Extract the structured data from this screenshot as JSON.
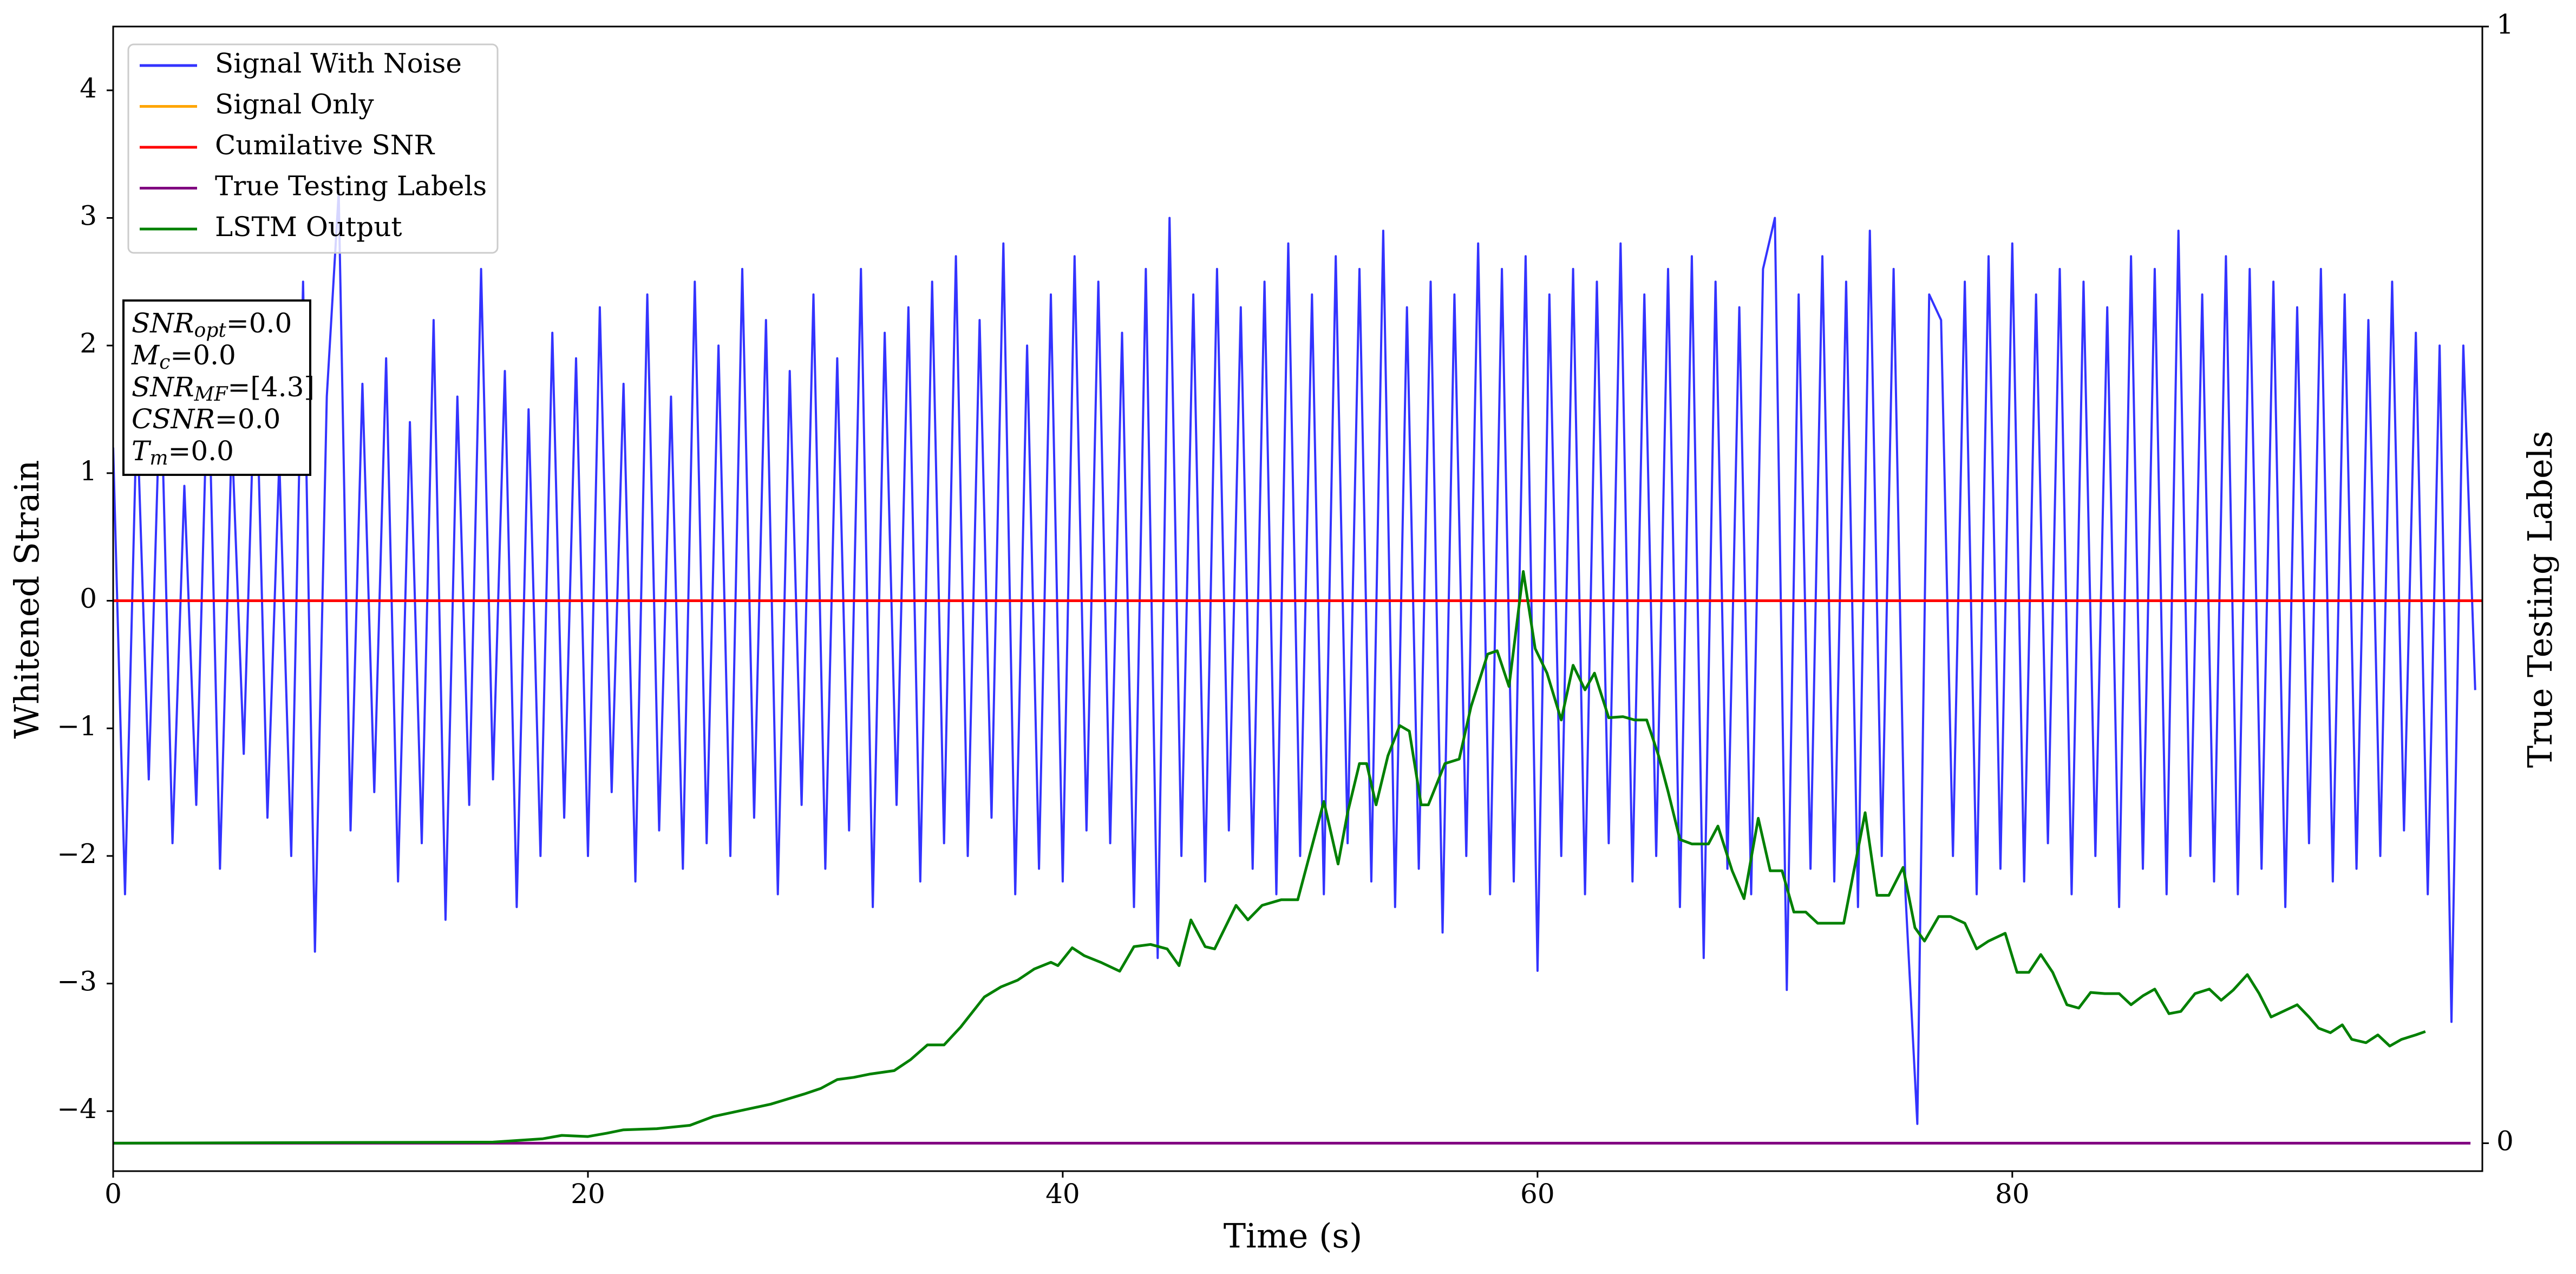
{
  "chart_data": {
    "type": "line",
    "xlabel": "Time (s)",
    "ylabel": "Whitened Strain",
    "y2label": "True Testing Labels",
    "xlim": [
      0,
      99.8
    ],
    "xticks": [
      0,
      20,
      40,
      60,
      80
    ],
    "ylim": [
      -4.47,
      4.5
    ],
    "yticks": [
      {
        "value": -4,
        "label": "−4"
      },
      {
        "value": -3,
        "label": "−3"
      },
      {
        "value": -2,
        "label": "−2"
      },
      {
        "value": -1,
        "label": "−1"
      },
      0,
      1,
      2,
      3,
      4
    ],
    "y2lim": [
      -0.025,
      1
    ],
    "y2ticks": [
      0,
      1
    ],
    "legend": "upper left",
    "annotations": [
      {
        "var": "SNR",
        "sub": "opt",
        "text": "=0.0"
      },
      {
        "var": "M",
        "sub": "c",
        "text": "=0.0"
      },
      {
        "var": "SNR",
        "sub": "MF",
        "text": "=[4.3]"
      },
      {
        "var": "CSNR",
        "text": "=0.0"
      },
      {
        "var": "T",
        "sub": "m",
        "text": "=0.0"
      }
    ],
    "series": [
      {
        "name": "Signal With Noise",
        "color": "#3333ff",
        "x": [
          0,
          0.5,
          1,
          1.5,
          2,
          2.5,
          3,
          3.5,
          4,
          4.5,
          5,
          5.5,
          6,
          6.5,
          7,
          7.5,
          8,
          8.5,
          9,
          9.5,
          10,
          10.5,
          11,
          11.5,
          12,
          12.5,
          13,
          13.5,
          14,
          14.5,
          15,
          15.5,
          16,
          16.5,
          17,
          17.5,
          18,
          18.5,
          19,
          19.5,
          20,
          20.5,
          21,
          21.5,
          22,
          22.5,
          23,
          23.5,
          24,
          24.5,
          25,
          25.5,
          26,
          26.5,
          27,
          27.5,
          28,
          28.5,
          29,
          29.5,
          30,
          30.5,
          31,
          31.5,
          32,
          32.5,
          33,
          33.5,
          34,
          34.5,
          35,
          35.5,
          36,
          36.5,
          37,
          37.5,
          38,
          38.5,
          39,
          39.5,
          40,
          40.5,
          41,
          41.5,
          42,
          42.5,
          43,
          43.5,
          44,
          44.5,
          45,
          45.5,
          46,
          46.5,
          47,
          47.5,
          48,
          48.5,
          49,
          49.5,
          50,
          50.5,
          51,
          51.5,
          52,
          52.5,
          53,
          53.5,
          54,
          54.5,
          55,
          55.5,
          56,
          56.5,
          57,
          57.5,
          58,
          58.5,
          59,
          59.5,
          60,
          60.5,
          61,
          61.5,
          62,
          62.5,
          63,
          63.5,
          64,
          64.5,
          65,
          65.5,
          66,
          66.5,
          67,
          67.5,
          68,
          68.5,
          69,
          69.5,
          70,
          70.5,
          71,
          71.5,
          72,
          72.5,
          73,
          73.5,
          74,
          74.5,
          75,
          75.5,
          76,
          76.5,
          77,
          77.5,
          78,
          78.5,
          79,
          79.5,
          80,
          80.5,
          81,
          81.5,
          82,
          82.5,
          83,
          83.5,
          84,
          84.5,
          85,
          85.5,
          86,
          86.5,
          87,
          87.5,
          88,
          88.5,
          89,
          89.5,
          90,
          90.5,
          91,
          91.5,
          92,
          92.5,
          93,
          93.5,
          94,
          94.5,
          95,
          95.5,
          96,
          96.5,
          97,
          97.5,
          98,
          98.5,
          99,
          99.5
        ],
        "values": [
          1.2,
          -2.3,
          1.5,
          -1.4,
          1.8,
          -1.9,
          0.9,
          -1.6,
          1.9,
          -2.1,
          1.3,
          -1.2,
          2.0,
          -1.7,
          1.1,
          -2.0,
          2.5,
          -2.75,
          1.6,
          3.2,
          -1.8,
          1.7,
          -1.5,
          1.9,
          -2.2,
          1.4,
          -1.9,
          2.2,
          -2.5,
          1.6,
          -1.6,
          2.6,
          -1.4,
          1.8,
          -2.4,
          1.5,
          -2.0,
          2.1,
          -1.7,
          1.9,
          -2.0,
          2.3,
          -1.5,
          1.7,
          -2.2,
          2.4,
          -1.8,
          1.6,
          -2.1,
          2.5,
          -1.9,
          2.0,
          -2.0,
          2.6,
          -1.7,
          2.2,
          -2.3,
          1.8,
          -1.6,
          2.4,
          -2.1,
          1.9,
          -1.8,
          2.6,
          -2.4,
          2.1,
          -1.6,
          2.3,
          -2.2,
          2.5,
          -1.9,
          2.7,
          -2.0,
          2.2,
          -1.7,
          2.8,
          -2.3,
          2.0,
          -2.1,
          2.4,
          -2.2,
          2.7,
          -1.8,
          2.5,
          -1.9,
          2.1,
          -2.4,
          2.6,
          -2.8,
          3.0,
          -2.0,
          2.4,
          -2.2,
          2.6,
          -1.8,
          2.3,
          -2.1,
          2.5,
          -2.3,
          2.8,
          -2.0,
          2.4,
          -2.3,
          2.7,
          -1.9,
          2.6,
          -2.2,
          2.9,
          -2.4,
          2.3,
          -2.1,
          2.5,
          -2.6,
          2.4,
          -2.0,
          2.8,
          -2.3,
          2.6,
          -2.2,
          2.7,
          -2.9,
          2.4,
          -2.0,
          2.6,
          -2.3,
          2.5,
          -1.9,
          2.8,
          -2.2,
          2.4,
          -2.0,
          2.6,
          -2.4,
          2.7,
          -2.8,
          2.5,
          -2.1,
          2.3,
          -2.3,
          2.6,
          3.0,
          -3.05,
          2.4,
          -2.1,
          2.7,
          -2.2,
          2.5,
          -2.4,
          2.9,
          -2.0,
          2.6,
          -2.3,
          -4.1,
          2.4,
          2.2,
          -2.0,
          2.5,
          -2.3,
          2.7,
          -2.1,
          2.8,
          -2.2,
          2.4,
          -1.9,
          2.6,
          -2.3,
          2.5,
          -2.0,
          2.3,
          -2.4,
          2.7,
          -2.1,
          2.6,
          -2.3,
          2.9,
          -2.0,
          2.4,
          -2.2,
          2.7,
          -2.3,
          2.6,
          -2.1,
          2.5,
          -2.4,
          2.3,
          -1.9,
          2.6,
          -2.2,
          2.4,
          -2.1,
          2.2,
          -2.0,
          2.5,
          -1.8,
          2.1,
          -2.3,
          2.0,
          -3.3,
          2.0,
          -0.7
        ]
      },
      {
        "name": "Signal Only",
        "color": "#ffa500",
        "x": [
          0,
          99.8
        ],
        "values": [
          0,
          0
        ]
      },
      {
        "name": "Cumilative SNR",
        "color": "#ff0000",
        "x": [
          0,
          99.8
        ],
        "values": [
          0,
          0
        ]
      },
      {
        "name": "True Testing Labels",
        "color": "#800080",
        "axis": "y2",
        "x": [
          0,
          99.3
        ],
        "values": [
          0,
          0
        ]
      },
      {
        "name": "LSTM Output",
        "color": "#008000",
        "axis": "y2",
        "x": [
          0,
          16.0,
          18.1,
          18.9,
          20.0,
          20.8,
          21.5,
          22.9,
          24.3,
          25.3,
          26.4,
          27.7,
          29.1,
          29.8,
          30.5,
          31.2,
          31.9,
          32.9,
          33.6,
          34.3,
          35.0,
          35.7,
          36.7,
          37.4,
          38.1,
          38.8,
          39.5,
          39.8,
          40.4,
          40.9,
          41.6,
          42.4,
          43.0,
          43.7,
          44.4,
          44.9,
          45.4,
          46.0,
          46.4,
          47.3,
          47.8,
          48.4,
          49.2,
          49.9,
          50.6,
          51.0,
          51.6,
          52.0,
          52.5,
          52.8,
          53.2,
          53.7,
          54.2,
          54.6,
          55.1,
          55.4,
          56.1,
          56.7,
          57.2,
          57.9,
          58.3,
          58.8,
          59.0,
          59.4,
          59.9,
          60.4,
          61.0,
          61.5,
          62.0,
          62.4,
          63.0,
          63.6,
          64.1,
          64.6,
          65.1,
          65.5,
          66.0,
          66.5,
          67.2,
          67.6,
          68.2,
          68.7,
          69.3,
          69.8,
          70.3,
          70.8,
          71.3,
          71.8,
          72.4,
          72.9,
          73.8,
          74.3,
          74.8,
          75.4,
          75.9,
          76.3,
          76.9,
          77.4,
          78.0,
          78.5,
          79.0,
          79.7,
          80.2,
          80.7,
          81.2,
          81.7,
          82.3,
          82.8,
          83.3,
          83.9,
          84.5,
          85.0,
          85.5,
          86.0,
          86.6,
          87.1,
          87.7,
          88.3,
          88.8,
          89.3,
          89.9,
          90.4,
          90.9,
          91.4,
          92.0,
          92.5,
          92.9,
          93.4,
          93.9,
          94.3,
          94.9,
          95.4,
          95.9,
          96.4,
          97.0,
          97.4
        ],
        "values": [
          0,
          0.001,
          0.004,
          0.007,
          0.006,
          0.009,
          0.012,
          0.013,
          0.016,
          0.024,
          0.029,
          0.035,
          0.044,
          0.049,
          0.057,
          0.059,
          0.062,
          0.065,
          0.075,
          0.088,
          0.088,
          0.104,
          0.131,
          0.14,
          0.146,
          0.156,
          0.162,
          0.159,
          0.175,
          0.168,
          0.162,
          0.154,
          0.176,
          0.178,
          0.174,
          0.159,
          0.2,
          0.176,
          0.174,
          0.213,
          0.2,
          0.213,
          0.218,
          0.218,
          0.274,
          0.306,
          0.25,
          0.296,
          0.34,
          0.34,
          0.303,
          0.347,
          0.374,
          0.369,
          0.303,
          0.303,
          0.34,
          0.344,
          0.391,
          0.438,
          0.441,
          0.409,
          0.443,
          0.512,
          0.443,
          0.421,
          0.379,
          0.428,
          0.406,
          0.421,
          0.381,
          0.382,
          0.379,
          0.379,
          0.347,
          0.315,
          0.272,
          0.268,
          0.268,
          0.284,
          0.244,
          0.219,
          0.291,
          0.244,
          0.244,
          0.207,
          0.207,
          0.197,
          0.197,
          0.197,
          0.296,
          0.222,
          0.222,
          0.247,
          0.193,
          0.181,
          0.203,
          0.203,
          0.197,
          0.174,
          0.181,
          0.188,
          0.153,
          0.153,
          0.169,
          0.153,
          0.124,
          0.121,
          0.135,
          0.134,
          0.134,
          0.124,
          0.132,
          0.138,
          0.116,
          0.118,
          0.134,
          0.138,
          0.128,
          0.137,
          0.151,
          0.134,
          0.113,
          0.118,
          0.124,
          0.113,
          0.103,
          0.099,
          0.106,
          0.093,
          0.09,
          0.097,
          0.087,
          0.093,
          0.097,
          0.1
        ]
      }
    ]
  }
}
